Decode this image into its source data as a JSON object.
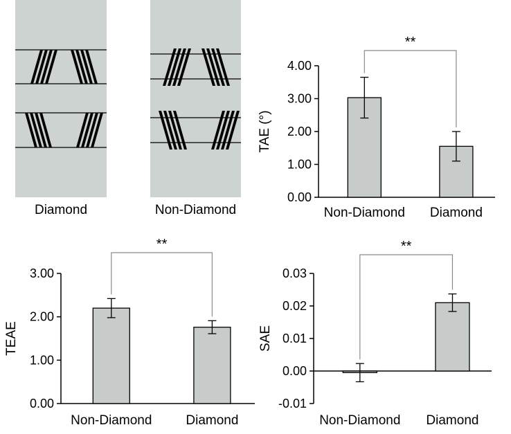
{
  "stimuli": [
    {
      "label": "Diamond",
      "kind": "diamond"
    },
    {
      "label": "Non-Diamond",
      "kind": "non-diamond"
    }
  ],
  "colors": {
    "stimulus_bg": "#cdd3d0",
    "bar_fill": "#c7cccb",
    "bracket": "#8a8a8a"
  },
  "chart_data": [
    {
      "id": "tae",
      "type": "bar",
      "categories": [
        "Non-Diamond",
        "Diamond"
      ],
      "values": [
        3.03,
        1.55
      ],
      "errors": [
        0.62,
        0.45
      ],
      "ylabel": "TAE (°)",
      "ylim": [
        0,
        4
      ],
      "yticks": [
        "0.00",
        "1.00",
        "2.00",
        "3.00",
        "4.00"
      ],
      "tickvals": [
        0,
        1,
        2,
        3,
        4
      ],
      "significance": "**",
      "grid": false
    },
    {
      "id": "teae",
      "type": "bar",
      "categories": [
        "Non-Diamond",
        "Diamond"
      ],
      "values": [
        2.2,
        1.76
      ],
      "errors": [
        0.22,
        0.15
      ],
      "ylabel": "TEAE",
      "ylim": [
        0,
        3
      ],
      "yticks": [
        "0.00",
        "1.00",
        "2.00",
        "3.00"
      ],
      "tickvals": [
        0,
        1,
        2,
        3
      ],
      "significance": "**",
      "grid": false
    },
    {
      "id": "sae",
      "type": "bar",
      "categories": [
        "Non-Diamond",
        "Diamond"
      ],
      "values": [
        -0.0005,
        0.021
      ],
      "errors": [
        0.0028,
        0.0027
      ],
      "ylabel": "SAE",
      "ylim": [
        -0.01,
        0.03
      ],
      "yticks": [
        "-0.01",
        "0.00",
        "0.01",
        "0.02",
        "0.03"
      ],
      "tickvals": [
        -0.01,
        0,
        0.01,
        0.02,
        0.03
      ],
      "significance": "**",
      "grid": false
    }
  ]
}
